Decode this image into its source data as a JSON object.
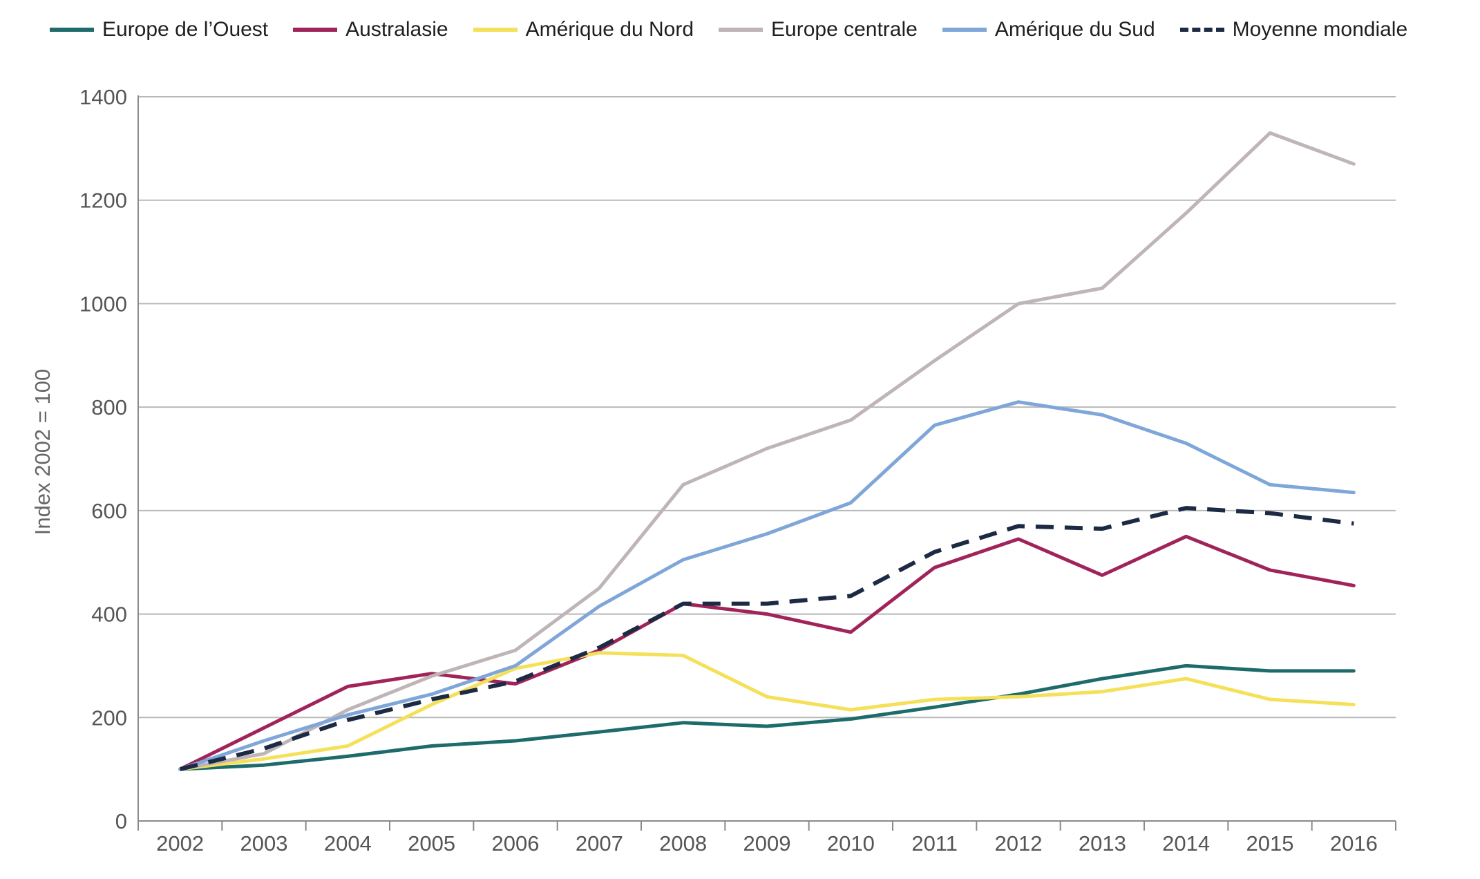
{
  "chart_data": {
    "type": "line",
    "title": "",
    "xlabel": "",
    "ylabel": "Index 2002 = 100",
    "ylim": [
      0,
      1400
    ],
    "yticks": [
      0,
      200,
      400,
      600,
      800,
      1000,
      1200,
      1400
    ],
    "grid": true,
    "legend_position": "top",
    "x": [
      "2002",
      "2003",
      "2004",
      "2005",
      "2006",
      "2007",
      "2008",
      "2009",
      "2010",
      "2011",
      "2012",
      "2013",
      "2014",
      "2015",
      "2016"
    ],
    "series": [
      {
        "name": "Europe de l’Ouest",
        "color": "#1d6b6b",
        "dashed": false,
        "values": [
          100,
          108,
          125,
          145,
          155,
          172,
          190,
          183,
          197,
          220,
          245,
          275,
          300,
          290,
          290
        ]
      },
      {
        "name": "Australasie",
        "color": "#a0245a",
        "dashed": false,
        "values": [
          100,
          180,
          260,
          285,
          265,
          330,
          420,
          400,
          365,
          490,
          545,
          475,
          550,
          485,
          455
        ]
      },
      {
        "name": "Amérique du Nord",
        "color": "#f5e05a",
        "dashed": false,
        "values": [
          100,
          120,
          145,
          225,
          295,
          325,
          320,
          240,
          215,
          235,
          240,
          250,
          275,
          235,
          225
        ]
      },
      {
        "name": "Europe centrale",
        "color": "#bfb5b8",
        "dashed": false,
        "values": [
          100,
          130,
          215,
          280,
          330,
          450,
          650,
          720,
          775,
          890,
          1000,
          1030,
          1175,
          1330,
          1270
        ]
      },
      {
        "name": "Amérique du Sud",
        "color": "#7fa6d8",
        "dashed": false,
        "values": [
          100,
          155,
          205,
          245,
          300,
          415,
          505,
          555,
          615,
          765,
          810,
          785,
          730,
          650,
          635
        ]
      },
      {
        "name": "Moyenne mondiale",
        "color": "#1c2a44",
        "dashed": true,
        "values": [
          100,
          140,
          195,
          235,
          270,
          335,
          420,
          420,
          435,
          520,
          570,
          565,
          605,
          595,
          575
        ]
      }
    ]
  }
}
